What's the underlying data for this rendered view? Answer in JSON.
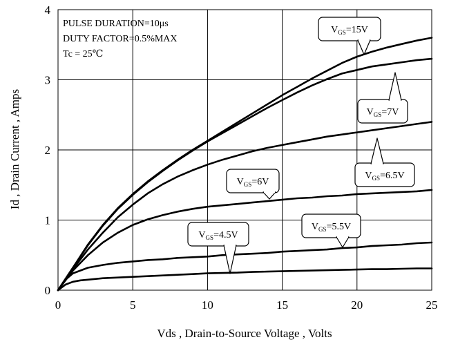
{
  "chart_data": {
    "type": "line",
    "title": "",
    "xlabel": "Vds , Drain-to-Source Voltage , Volts",
    "ylabel": "Id , Drain Current , Amps",
    "xlim": [
      0,
      25
    ],
    "ylim": [
      0,
      4
    ],
    "xticks": [
      "0",
      "5",
      "10",
      "15",
      "20",
      "25"
    ],
    "yticks": [
      "0",
      "1",
      "2",
      "3",
      "4"
    ],
    "grid": "major",
    "notes": [
      "PULSE DURATION=10μs",
      "DUTY FACTOR=0.5%MAX",
      "Tc = 25℃"
    ],
    "series": [
      {
        "name": "VGS=15V",
        "label_main": "V",
        "label_sub": "GS",
        "label_rest": "=15V",
        "points": [
          [
            0,
            0
          ],
          [
            1,
            0.32
          ],
          [
            2,
            0.65
          ],
          [
            3,
            0.93
          ],
          [
            4,
            1.17
          ],
          [
            5,
            1.37
          ],
          [
            6,
            1.55
          ],
          [
            7,
            1.71
          ],
          [
            8,
            1.86
          ],
          [
            9,
            2.0
          ],
          [
            10,
            2.13
          ],
          [
            11,
            2.26
          ],
          [
            12,
            2.39
          ],
          [
            13,
            2.52
          ],
          [
            14,
            2.65
          ],
          [
            15,
            2.78
          ],
          [
            16,
            2.9
          ],
          [
            17,
            3.02
          ],
          [
            18,
            3.13
          ],
          [
            19,
            3.24
          ],
          [
            20,
            3.33
          ],
          [
            21,
            3.4
          ],
          [
            22,
            3.46
          ],
          [
            23,
            3.51
          ],
          [
            24,
            3.56
          ],
          [
            25,
            3.6
          ]
        ]
      },
      {
        "name": "VGS=7V",
        "label_main": "V",
        "label_sub": "GS",
        "label_rest": "=7V",
        "points": [
          [
            0,
            0
          ],
          [
            1,
            0.32
          ],
          [
            2,
            0.64
          ],
          [
            3,
            0.92
          ],
          [
            4,
            1.16
          ],
          [
            5,
            1.36
          ],
          [
            6,
            1.54
          ],
          [
            7,
            1.7
          ],
          [
            8,
            1.85
          ],
          [
            9,
            1.99
          ],
          [
            10,
            2.12
          ],
          [
            11,
            2.24
          ],
          [
            12,
            2.36
          ],
          [
            13,
            2.48
          ],
          [
            14,
            2.6
          ],
          [
            15,
            2.71
          ],
          [
            16,
            2.82
          ],
          [
            17,
            2.92
          ],
          [
            18,
            3.01
          ],
          [
            19,
            3.09
          ],
          [
            20,
            3.14
          ],
          [
            21,
            3.19
          ],
          [
            22,
            3.22
          ],
          [
            23,
            3.25
          ],
          [
            24,
            3.28
          ],
          [
            25,
            3.3
          ]
        ]
      },
      {
        "name": "VGS=6.5V",
        "label_main": "V",
        "label_sub": "GS",
        "label_rest": "=6.5V",
        "points": [
          [
            0,
            0
          ],
          [
            1,
            0.3
          ],
          [
            2,
            0.58
          ],
          [
            3,
            0.82
          ],
          [
            4,
            1.04
          ],
          [
            5,
            1.22
          ],
          [
            6,
            1.38
          ],
          [
            7,
            1.51
          ],
          [
            8,
            1.62
          ],
          [
            9,
            1.71
          ],
          [
            10,
            1.79
          ],
          [
            11,
            1.86
          ],
          [
            12,
            1.92
          ],
          [
            13,
            1.98
          ],
          [
            14,
            2.03
          ],
          [
            15,
            2.07
          ],
          [
            16,
            2.11
          ],
          [
            17,
            2.15
          ],
          [
            18,
            2.19
          ],
          [
            19,
            2.22
          ],
          [
            20,
            2.25
          ],
          [
            21,
            2.28
          ],
          [
            22,
            2.31
          ],
          [
            23,
            2.34
          ],
          [
            24,
            2.37
          ],
          [
            25,
            2.4
          ]
        ]
      },
      {
        "name": "VGS=6V",
        "label_main": "V",
        "label_sub": "GS",
        "label_rest": "=6V",
        "points": [
          [
            0,
            0
          ],
          [
            1,
            0.28
          ],
          [
            2,
            0.5
          ],
          [
            3,
            0.68
          ],
          [
            4,
            0.82
          ],
          [
            5,
            0.93
          ],
          [
            6,
            1.01
          ],
          [
            7,
            1.07
          ],
          [
            8,
            1.12
          ],
          [
            9,
            1.16
          ],
          [
            10,
            1.19
          ],
          [
            11,
            1.21
          ],
          [
            12,
            1.23
          ],
          [
            13,
            1.25
          ],
          [
            14,
            1.27
          ],
          [
            15,
            1.29
          ],
          [
            16,
            1.31
          ],
          [
            17,
            1.32
          ],
          [
            18,
            1.34
          ],
          [
            19,
            1.35
          ],
          [
            20,
            1.37
          ],
          [
            21,
            1.38
          ],
          [
            22,
            1.39
          ],
          [
            23,
            1.4
          ],
          [
            24,
            1.41
          ],
          [
            25,
            1.43
          ]
        ]
      },
      {
        "name": "VGS=5.5V",
        "label_main": "V",
        "label_sub": "GS",
        "label_rest": "=5.5V",
        "points": [
          [
            0,
            0
          ],
          [
            0.5,
            0.15
          ],
          [
            1,
            0.24
          ],
          [
            2,
            0.32
          ],
          [
            3,
            0.36
          ],
          [
            4,
            0.39
          ],
          [
            5,
            0.41
          ],
          [
            6,
            0.43
          ],
          [
            7,
            0.44
          ],
          [
            8,
            0.46
          ],
          [
            9,
            0.47
          ],
          [
            10,
            0.48
          ],
          [
            11,
            0.5
          ],
          [
            12,
            0.51
          ],
          [
            13,
            0.52
          ],
          [
            14,
            0.53
          ],
          [
            15,
            0.55
          ],
          [
            16,
            0.56
          ],
          [
            17,
            0.57
          ],
          [
            18,
            0.58
          ],
          [
            19,
            0.6
          ],
          [
            20,
            0.61
          ],
          [
            21,
            0.63
          ],
          [
            22,
            0.64
          ],
          [
            23,
            0.65
          ],
          [
            24,
            0.67
          ],
          [
            25,
            0.68
          ]
        ]
      },
      {
        "name": "VGS=4.5V",
        "label_main": "V",
        "label_sub": "GS",
        "label_rest": "=4.5V",
        "points": [
          [
            0,
            0
          ],
          [
            0.5,
            0.08
          ],
          [
            1,
            0.12
          ],
          [
            1.5,
            0.14
          ],
          [
            2,
            0.15
          ],
          [
            3,
            0.17
          ],
          [
            4,
            0.18
          ],
          [
            5,
            0.19
          ],
          [
            6,
            0.2
          ],
          [
            7,
            0.21
          ],
          [
            8,
            0.22
          ],
          [
            9,
            0.23
          ],
          [
            10,
            0.24
          ],
          [
            11,
            0.245
          ],
          [
            12,
            0.25
          ],
          [
            13,
            0.26
          ],
          [
            14,
            0.265
          ],
          [
            15,
            0.27
          ],
          [
            16,
            0.275
          ],
          [
            17,
            0.28
          ],
          [
            18,
            0.285
          ],
          [
            19,
            0.29
          ],
          [
            20,
            0.295
          ],
          [
            21,
            0.3
          ],
          [
            22,
            0.3
          ],
          [
            23,
            0.305
          ],
          [
            24,
            0.31
          ],
          [
            25,
            0.31
          ]
        ]
      }
    ]
  }
}
